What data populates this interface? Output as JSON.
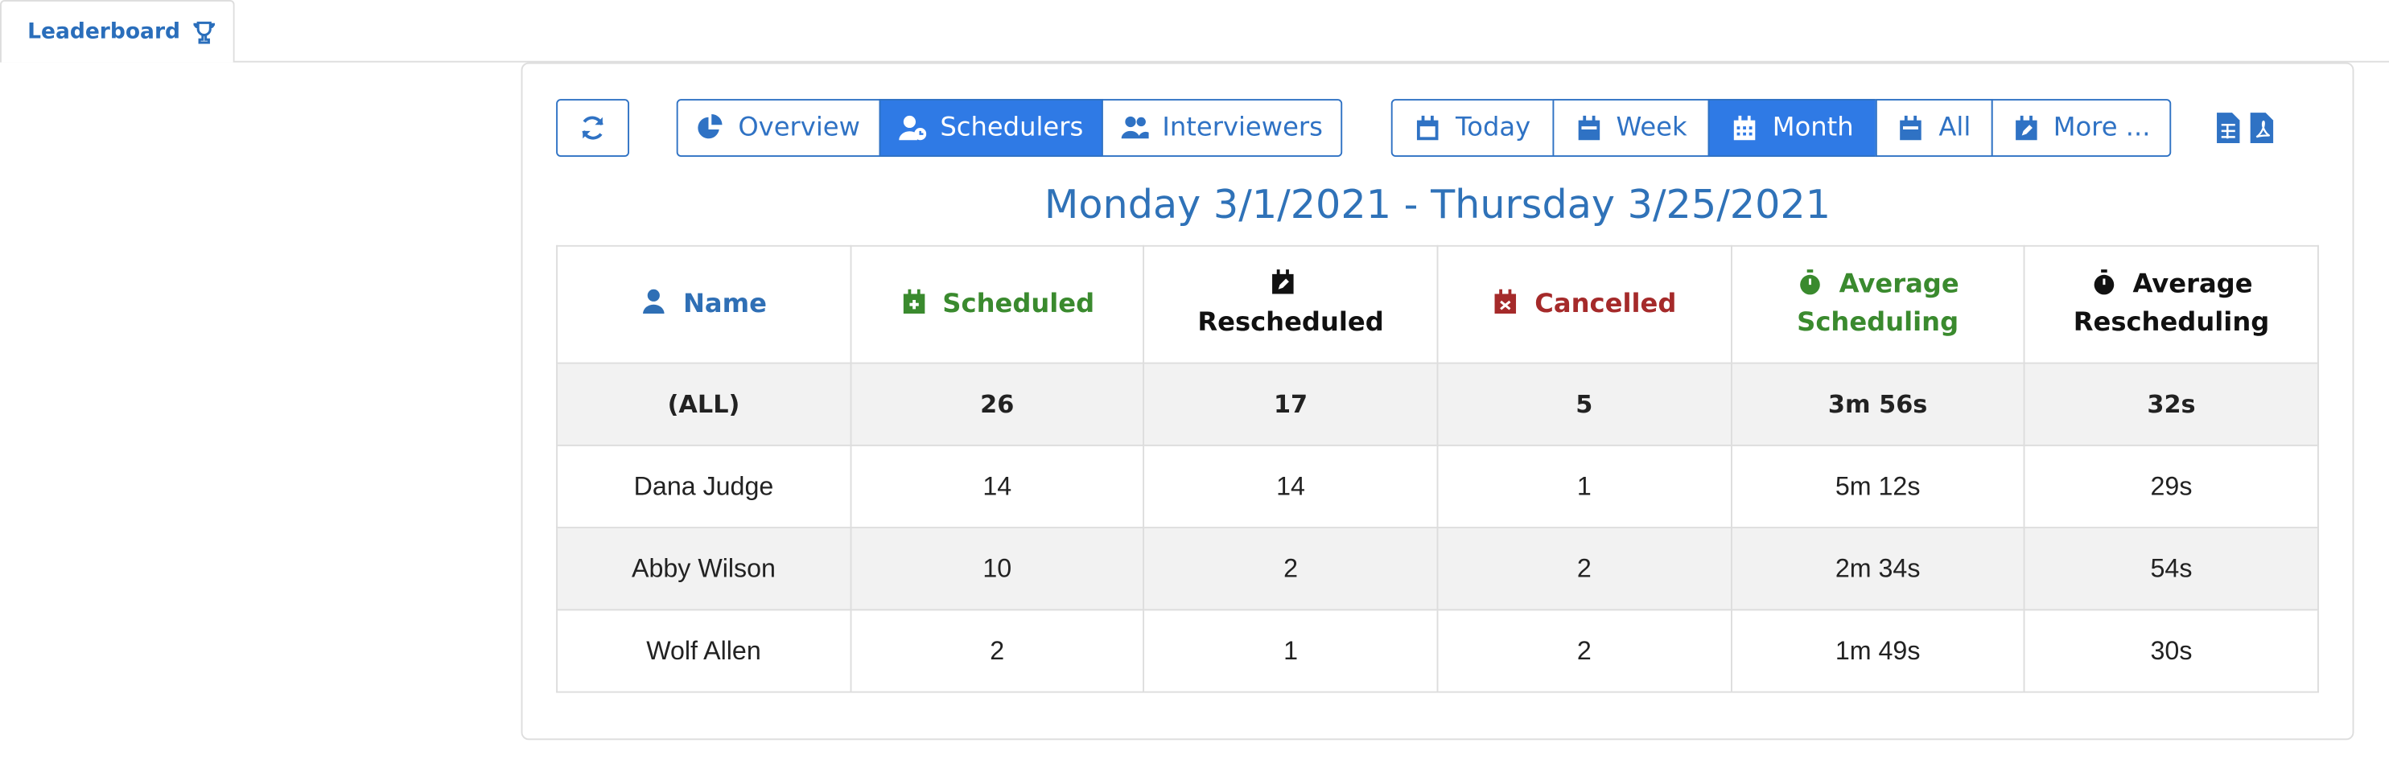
{
  "tab": {
    "label": "Leaderboard"
  },
  "toolbar": {
    "views": [
      "Overview",
      "Schedulers",
      "Interviewers"
    ],
    "active_view": 1,
    "ranges": [
      "Today",
      "Week",
      "Month",
      "All",
      "More ..."
    ],
    "active_range": 2
  },
  "date_range": "Monday 3/1/2021 - Thursday 3/25/2021",
  "table": {
    "headers": [
      "Name",
      "Scheduled",
      "Rescheduled",
      "Cancelled",
      "Average Scheduling",
      "Average Rescheduling"
    ],
    "rows": [
      [
        "(ALL)",
        26,
        17,
        5,
        "3m 56s",
        "32s"
      ],
      [
        "Dana Judge",
        14,
        14,
        1,
        "5m 12s",
        "29s"
      ],
      [
        "Abby Wilson",
        10,
        2,
        2,
        "2m 34s",
        "54s"
      ],
      [
        "Wolf Allen",
        2,
        1,
        2,
        "1m 49s",
        "30s"
      ]
    ]
  }
}
